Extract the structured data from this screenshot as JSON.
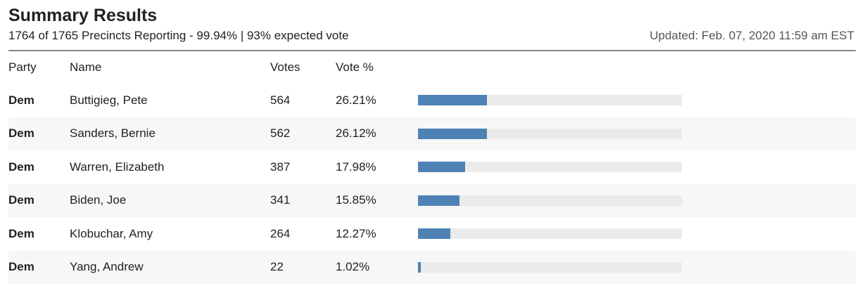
{
  "header": {
    "title": "Summary Results",
    "subtitle": "1764 of 1765 Precincts Reporting - 99.94% | 93% expected vote",
    "updated": "Updated: Feb. 07, 2020 11:59 am EST"
  },
  "table": {
    "columns": [
      "Party",
      "Name",
      "Votes",
      "Vote %"
    ],
    "rows": [
      {
        "party": "Dem",
        "name": "Buttigieg, Pete",
        "votes": "564",
        "pct": "26.21%",
        "share": 26.21
      },
      {
        "party": "Dem",
        "name": "Sanders, Bernie",
        "votes": "562",
        "pct": "26.12%",
        "share": 26.12
      },
      {
        "party": "Dem",
        "name": "Warren, Elizabeth",
        "votes": "387",
        "pct": "17.98%",
        "share": 17.98
      },
      {
        "party": "Dem",
        "name": "Biden, Joe",
        "votes": "341",
        "pct": "15.85%",
        "share": 15.85
      },
      {
        "party": "Dem",
        "name": "Klobuchar, Amy",
        "votes": "264",
        "pct": "12.27%",
        "share": 12.27
      },
      {
        "party": "Dem",
        "name": "Yang, Andrew",
        "votes": "22",
        "pct": "1.02%",
        "share": 1.02
      }
    ]
  },
  "colors": {
    "bar_fill": "#4f82b4",
    "bar_track": "#ebebeb",
    "party_link": "#4a7fb0"
  }
}
